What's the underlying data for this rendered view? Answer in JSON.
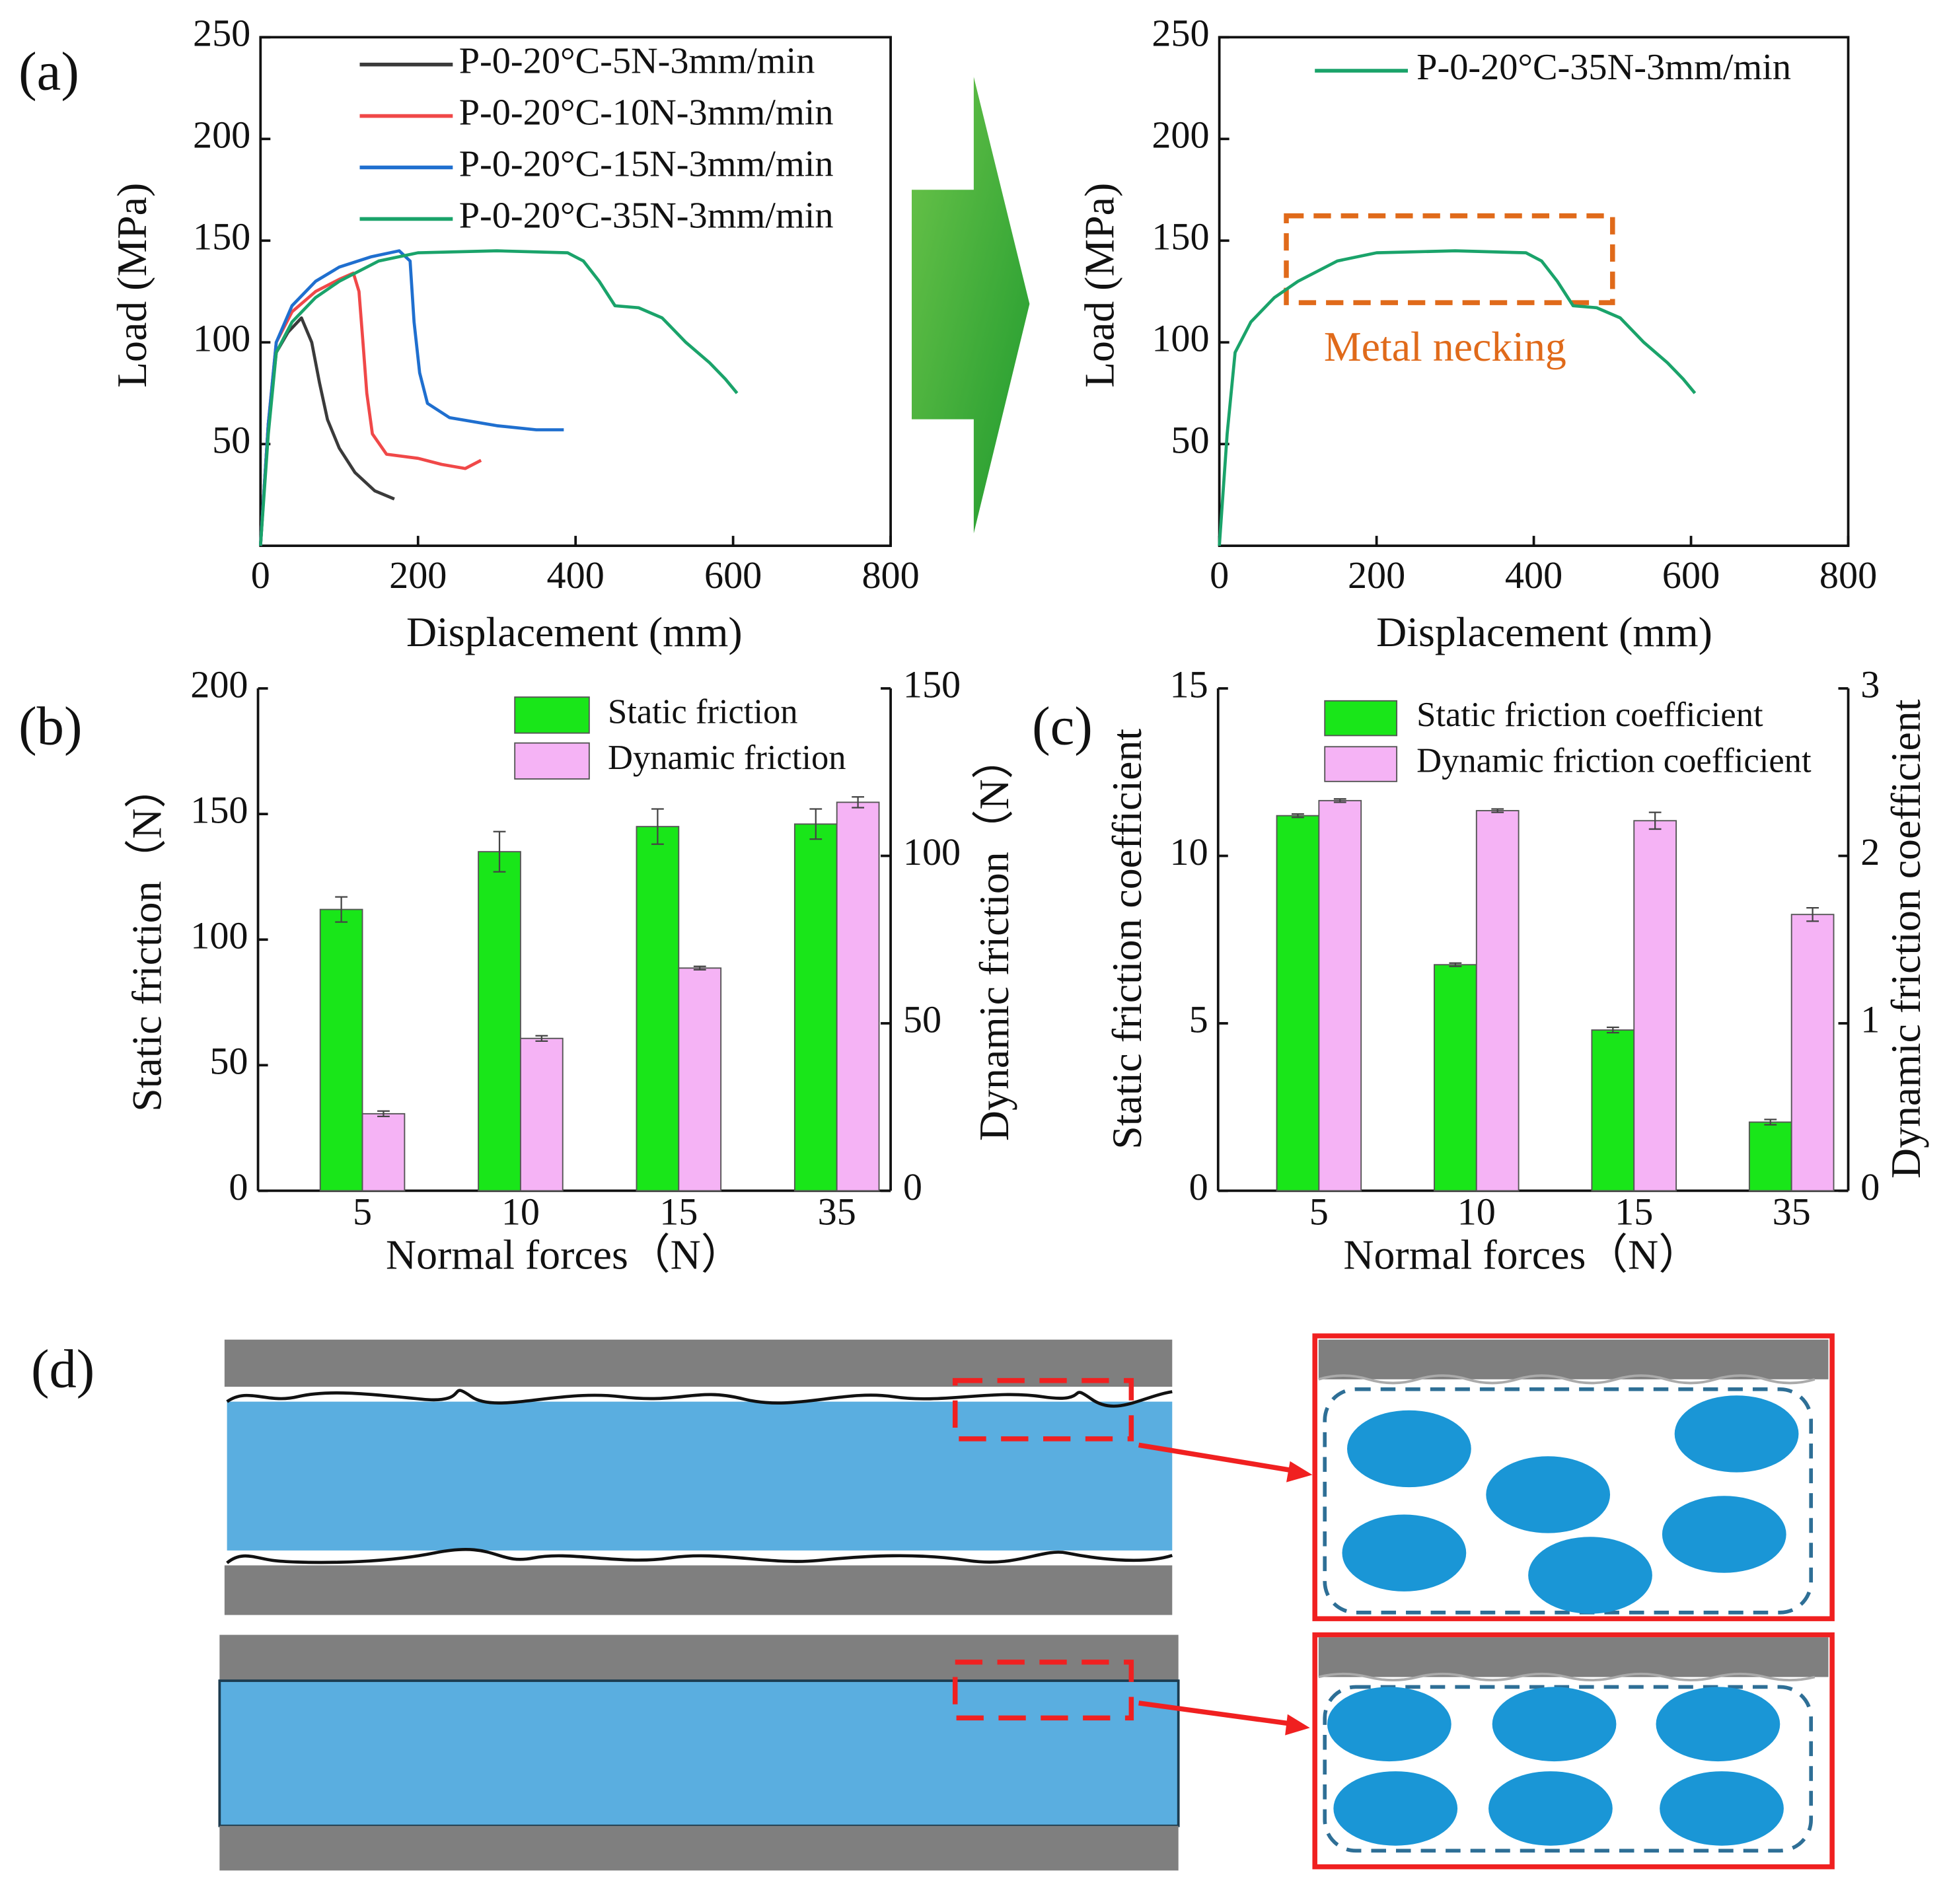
{
  "chart_data": [
    {
      "type": "line",
      "panel": "(a)",
      "xlabel": "Displacement (mm)",
      "ylabel": "Load (MPa)",
      "xlim": [
        0,
        800
      ],
      "ylim": [
        0,
        250
      ],
      "xticks": [
        0,
        200,
        400,
        600,
        800
      ],
      "yticks": [
        50,
        100,
        150,
        200,
        250
      ],
      "series": [
        {
          "name": "P-0-20°C-5N-3mm/min",
          "color": "#3a3a3a",
          "x": [
            0,
            10,
            20,
            35,
            52,
            65,
            75,
            85,
            100,
            120,
            145,
            170
          ],
          "values": [
            0,
            60,
            95,
            105,
            112,
            100,
            80,
            62,
            48,
            36,
            27,
            23
          ]
        },
        {
          "name": "P-0-20°C-10N-3mm/min",
          "color": "#f04848",
          "x": [
            0,
            10,
            20,
            40,
            70,
            100,
            118,
            125,
            130,
            135,
            142,
            160,
            200,
            230,
            260,
            280
          ],
          "values": [
            0,
            60,
            100,
            115,
            125,
            131,
            134,
            125,
            100,
            75,
            55,
            45,
            43,
            40,
            38,
            42
          ]
        },
        {
          "name": "P-0-20°C-15N-3mm/min",
          "color": "#1f6fcf",
          "x": [
            0,
            10,
            20,
            40,
            70,
            100,
            140,
            176,
            190,
            195,
            202,
            212,
            240,
            300,
            350,
            385
          ],
          "values": [
            0,
            60,
            100,
            118,
            130,
            137,
            142,
            145,
            140,
            110,
            85,
            70,
            63,
            59,
            57,
            57
          ]
        },
        {
          "name": "P-0-20°C-35N-3mm/min",
          "color": "#1aa36a",
          "x": [
            0,
            10,
            20,
            40,
            70,
            100,
            150,
            200,
            300,
            390,
            410,
            430,
            450,
            480,
            510,
            540,
            570,
            590,
            605
          ],
          "values": [
            0,
            55,
            95,
            110,
            122,
            130,
            140,
            144,
            145,
            144,
            140,
            130,
            118,
            117,
            112,
            100,
            90,
            82,
            75
          ]
        }
      ]
    },
    {
      "type": "line",
      "xlabel": "Displacement (mm)",
      "ylabel": "Load (MPa)",
      "annotation": "Metal necking",
      "xlim": [
        0,
        800
      ],
      "ylim": [
        0,
        250
      ],
      "xticks": [
        0,
        200,
        400,
        600,
        800
      ],
      "yticks": [
        50,
        100,
        150,
        200,
        250
      ],
      "series": [
        {
          "name": "P-0-20°C-35N-3mm/min",
          "color": "#1aa36a",
          "x": [
            0,
            10,
            20,
            40,
            70,
            100,
            150,
            200,
            300,
            390,
            410,
            430,
            450,
            480,
            510,
            540,
            570,
            590,
            605
          ],
          "values": [
            0,
            55,
            95,
            110,
            122,
            130,
            140,
            144,
            145,
            144,
            140,
            130,
            118,
            117,
            112,
            100,
            90,
            82,
            75
          ]
        }
      ]
    },
    {
      "type": "bar",
      "panel": "(b)",
      "xlabel": "Normal forces（N）",
      "ylabel": "Static friction（N）",
      "y2label": "Dynamic friction（N）",
      "categories": [
        "5",
        "10",
        "15",
        "35"
      ],
      "ylim": [
        0,
        200
      ],
      "yticks": [
        0,
        50,
        100,
        150,
        200
      ],
      "y2lim": [
        0,
        150
      ],
      "y2ticks": [
        0,
        50,
        100,
        150
      ],
      "series": [
        {
          "name": "Static friction",
          "color": "#19e619",
          "values": [
            112,
            135,
            145,
            146
          ],
          "errors": [
            5,
            8,
            7,
            6
          ]
        },
        {
          "name": "Dynamic friction",
          "color": "#f5b3f5",
          "values": [
            23,
            45.5,
            66.5,
            116
          ],
          "errors": [
            0.8,
            0.8,
            0.5,
            1.6
          ],
          "axis": "y2"
        }
      ]
    },
    {
      "type": "bar",
      "panel": "(c)",
      "xlabel": "Normal forces（N）",
      "ylabel": "Static friction coefficient",
      "y2label": "Dynamic friction coefficient",
      "categories": [
        "5",
        "10",
        "15",
        "35"
      ],
      "ylim": [
        0,
        15
      ],
      "yticks": [
        0,
        5,
        10,
        15
      ],
      "y2lim": [
        0,
        3
      ],
      "y2ticks": [
        0,
        1,
        2,
        3
      ],
      "series": [
        {
          "name": "Static friction coefficient",
          "color": "#19e619",
          "values": [
            11.2,
            6.75,
            4.8,
            2.05
          ],
          "errors": [
            0.05,
            0.05,
            0.08,
            0.08
          ]
        },
        {
          "name": "Dynamic friction coefficient",
          "color": "#f5b3f5",
          "values": [
            2.33,
            2.27,
            2.21,
            1.65
          ],
          "errors": [
            0.01,
            0.01,
            0.05,
            0.04
          ],
          "axis": "y2"
        }
      ]
    }
  ],
  "diagram": {
    "label": "(d)"
  }
}
